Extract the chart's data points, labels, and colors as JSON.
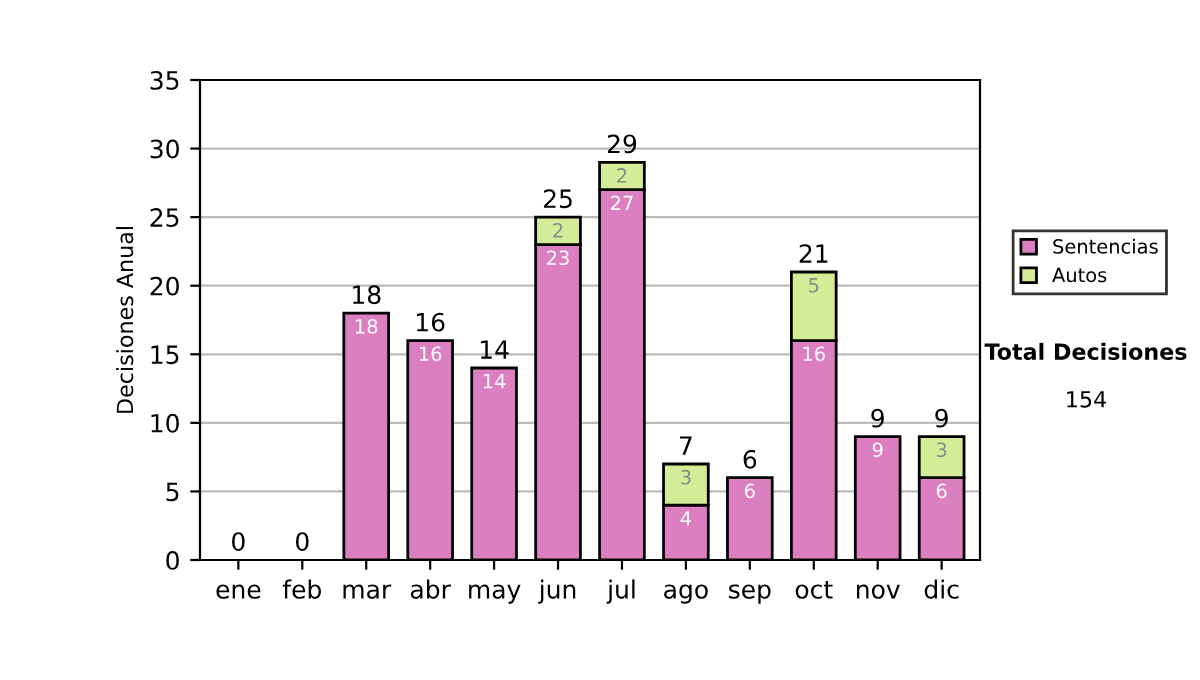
{
  "chart_data": {
    "type": "bar",
    "stacked": true,
    "ylabel": "Decisiones Anual",
    "categories": [
      "ene",
      "feb",
      "mar",
      "abr",
      "may",
      "jun",
      "jul",
      "ago",
      "sep",
      "oct",
      "nov",
      "dic"
    ],
    "series": [
      {
        "name": "Sentencias",
        "color": "#dc7fc0",
        "values": [
          0,
          0,
          18,
          16,
          14,
          23,
          27,
          4,
          6,
          16,
          9,
          6
        ],
        "value_labels": [
          null,
          null,
          "18",
          "16",
          "14",
          "23",
          "27",
          "4",
          "6",
          "16",
          "9",
          "6"
        ]
      },
      {
        "name": "Autos",
        "color": "#d4ec98",
        "values": [
          0,
          0,
          0,
          0,
          0,
          2,
          2,
          3,
          0,
          5,
          0,
          3
        ],
        "value_labels": [
          null,
          null,
          null,
          null,
          null,
          "2",
          "2",
          "3",
          null,
          "5",
          null,
          "3"
        ]
      }
    ],
    "totals": [
      "0",
      "0",
      "18",
      "16",
      "14",
      "25",
      "29",
      "7",
      "6",
      "21",
      "9",
      "9"
    ],
    "ylim": [
      0,
      35
    ],
    "yticks": [
      0,
      5,
      10,
      15,
      20,
      25,
      30,
      35
    ],
    "grid": "y",
    "legend": "right",
    "annotations": [
      "Total Decisiones",
      "154"
    ]
  }
}
